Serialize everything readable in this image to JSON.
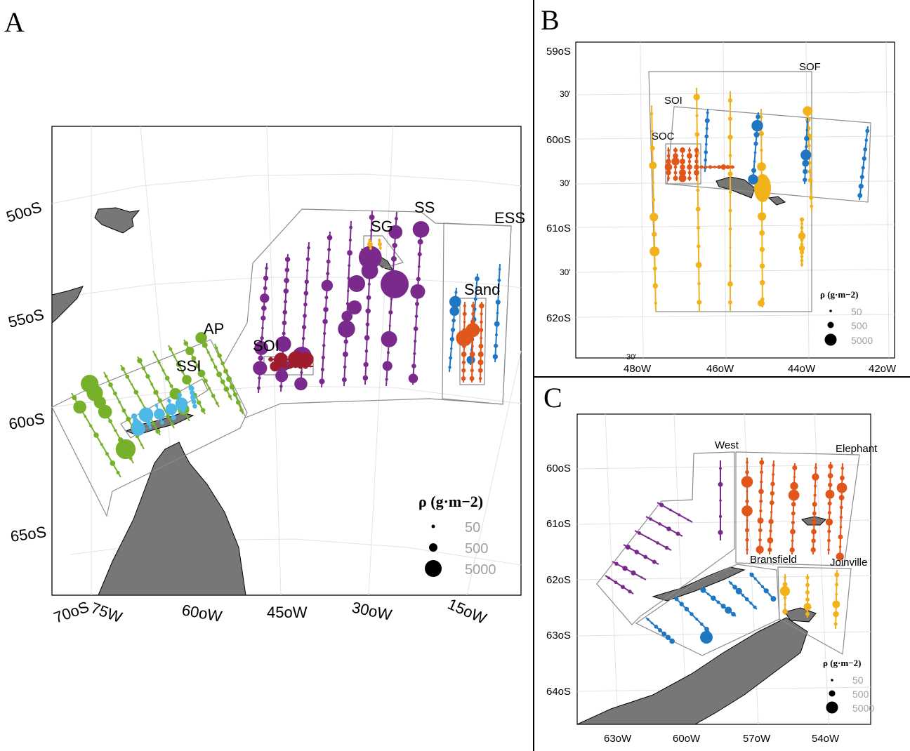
{
  "panels": {
    "A": {
      "label": "A",
      "lat_ticks": [
        "50oS",
        "55oS",
        "60oS",
        "65oS",
        "70oS"
      ],
      "lon_ticks": [
        "75W",
        "60oW",
        "45oW",
        "30oW",
        "15oW"
      ],
      "regions": [
        "AP",
        "SSI",
        "SOI",
        "SG",
        "SS",
        "ESS",
        "Sand"
      ],
      "legend": {
        "title": "ρ (g·m−2)",
        "values": [
          "50",
          "500",
          "5000"
        ]
      }
    },
    "B": {
      "label": "B",
      "lat_ticks": [
        "59oS",
        "30'",
        "60oS",
        "30'",
        "61oS",
        "30'",
        "62oS"
      ],
      "lon_ticks": [
        "48oW",
        "46oW",
        "44oW",
        "42oW"
      ],
      "extra_tick": "30'",
      "regions": [
        "SOF",
        "SOI",
        "SOC"
      ],
      "legend": {
        "title": "ρ (g·m−2)",
        "values": [
          "50",
          "500",
          "5000"
        ]
      }
    },
    "C": {
      "label": "C",
      "lat_ticks": [
        "60oS",
        "61oS",
        "62oS",
        "63oS",
        "64oS"
      ],
      "lon_ticks": [
        "63oW",
        "60oW",
        "57oW",
        "54oW"
      ],
      "regions": [
        "West",
        "Elephant",
        "Bransfield",
        "Joinville"
      ],
      "legend": {
        "title": "ρ (g·m−2)",
        "values": [
          "50",
          "500",
          "5000"
        ]
      }
    }
  },
  "colors": {
    "AP": "#77b02a",
    "SSI": "#4cb8e6",
    "SOI_A": "#9e1c2c",
    "SS": "#7a2a8c",
    "ESS": "#1f77c4",
    "Sand": "#e0561b",
    "SG": "#f1b21c",
    "SOI_B": "#1f77c4",
    "SOF": "#f1b21c",
    "SOC": "#e0561b",
    "West": "#7a2a8c",
    "Elephant": "#e0561b",
    "Bransfield": "#1f77c4",
    "Joinville": "#f1b21c",
    "land": "#777777"
  }
}
